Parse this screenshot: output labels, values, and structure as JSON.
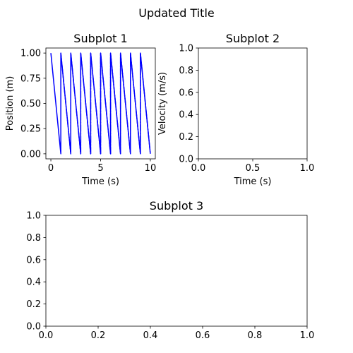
{
  "figure": {
    "title": "Updated Title"
  },
  "colors": {
    "line": "#0000ff",
    "axes": "#000000",
    "background": "#ffffff"
  },
  "chart_data": [
    {
      "type": "line",
      "title": "Subplot 1",
      "xlabel": "Time (s)",
      "ylabel": "Position (m)",
      "xlim": [
        -0.5,
        10.5
      ],
      "ylim": [
        -0.05,
        1.05
      ],
      "xticks": [
        0,
        5,
        10
      ],
      "xtick_labels": [
        "0",
        "5",
        "10"
      ],
      "yticks": [
        0,
        0.25,
        0.5,
        0.75,
        1
      ],
      "ytick_labels": [
        "0.00",
        "0.25",
        "0.50",
        "0.75",
        "1.00"
      ],
      "grid": false,
      "series": [
        {
          "style": "solid",
          "x": [
            0,
            1,
            1,
            2,
            2,
            3,
            3,
            4,
            4,
            5,
            5,
            6,
            6,
            7,
            7,
            8,
            8,
            9,
            9,
            10
          ],
          "y": [
            1,
            0,
            1,
            0,
            1,
            0,
            1,
            0,
            1,
            0,
            1,
            0,
            1,
            0,
            1,
            0,
            1,
            0,
            1,
            0
          ]
        },
        {
          "style": "dashdot",
          "x": [
            1,
            2,
            2,
            3,
            3,
            4,
            4,
            5,
            5,
            6,
            6,
            7,
            7,
            8,
            8,
            9,
            9,
            10
          ],
          "y": [
            1,
            0,
            1,
            0,
            1,
            0,
            1,
            0,
            1,
            0,
            1,
            0,
            1,
            0,
            1,
            0,
            1,
            0
          ]
        }
      ]
    },
    {
      "type": "line",
      "title": "Subplot 2",
      "xlabel": "Time (s)",
      "ylabel": "Velocity (m/s)",
      "xlim": [
        0,
        1
      ],
      "ylim": [
        0,
        1
      ],
      "xticks": [
        0,
        0.5,
        1
      ],
      "xtick_labels": [
        "0.0",
        "0.5",
        "1.0"
      ],
      "yticks": [
        0,
        0.2,
        0.4,
        0.6,
        0.8,
        1
      ],
      "ytick_labels": [
        "0.0",
        "0.2",
        "0.4",
        "0.6",
        "0.8",
        "1.0"
      ],
      "grid": false,
      "series": []
    },
    {
      "type": "line",
      "title": "Subplot 3",
      "xlabel": "",
      "ylabel": "",
      "xlim": [
        0,
        1
      ],
      "ylim": [
        0,
        1
      ],
      "xticks": [
        0,
        0.2,
        0.4,
        0.6,
        0.8,
        1
      ],
      "xtick_labels": [
        "0.0",
        "0.2",
        "0.4",
        "0.6",
        "0.8",
        "1.0"
      ],
      "yticks": [
        0,
        0.2,
        0.4,
        0.6,
        0.8,
        1
      ],
      "ytick_labels": [
        "0.0",
        "0.2",
        "0.4",
        "0.6",
        "0.8",
        "1.0"
      ],
      "grid": false,
      "series": []
    }
  ]
}
